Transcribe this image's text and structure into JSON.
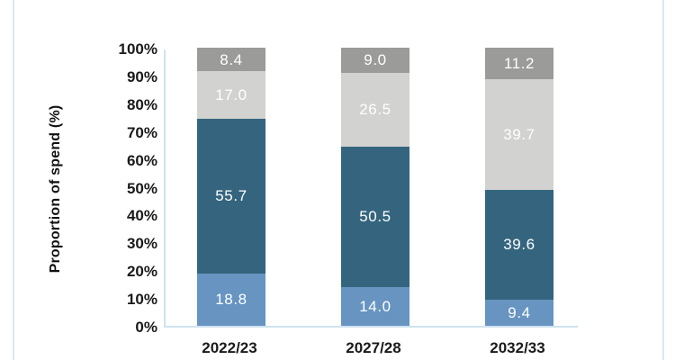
{
  "card": {
    "background_color": "#ffffff",
    "edge_color": "#d8e8f4"
  },
  "chart_data": {
    "type": "bar",
    "subtype": "stacked-100-percent",
    "ylabel": "Proportion of spend (%)",
    "categories": [
      "2022/23",
      "2027/28",
      "2032/33"
    ],
    "series": [
      {
        "id": "series-1-bottom",
        "color": "#6794c1",
        "values": [
          18.8,
          14.0,
          9.4
        ]
      },
      {
        "id": "series-2",
        "color": "#35657e",
        "values": [
          55.7,
          50.5,
          39.6
        ]
      },
      {
        "id": "series-3",
        "color": "#d2d2d0",
        "values": [
          17.0,
          26.5,
          39.7
        ]
      },
      {
        "id": "series-4-top",
        "color": "#9b9b99",
        "values": [
          8.4,
          9.0,
          11.2
        ]
      }
    ],
    "ylim": [
      0,
      100
    ],
    "yticks": [
      "0%",
      "10%",
      "20%",
      "30%",
      "40%",
      "50%",
      "60%",
      "70%",
      "80%",
      "90%",
      "100%"
    ],
    "grid": false,
    "legend": false,
    "value_label_color": "#ffffff",
    "value_label_decimals": 1,
    "axis_line_color": "#cfe2f0",
    "tick_label_color": "#1a1a1a"
  }
}
